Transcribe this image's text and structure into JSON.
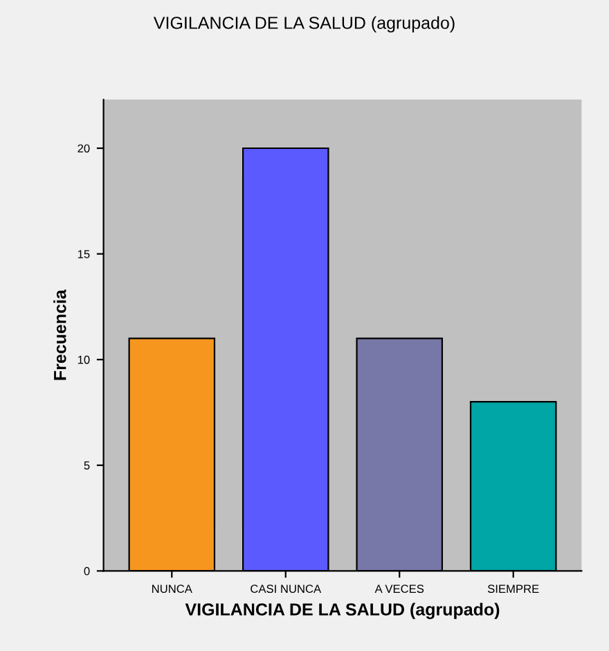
{
  "chart_data": {
    "type": "bar",
    "title": "VIGILANCIA DE LA SALUD (agrupado)",
    "xlabel": "VIGILANCIA DE LA SALUD (agrupado)",
    "ylabel": "Frecuencia",
    "categories": [
      "NUNCA",
      "CASI NUNCA",
      "A VECES",
      "SIEMPRE"
    ],
    "values": [
      11,
      20,
      11,
      8
    ],
    "colors": [
      "#f7961e",
      "#5a5aff",
      "#7878a8",
      "#00a5a5"
    ],
    "ylim": [
      0,
      22.3
    ],
    "yticks": [
      0,
      5,
      10,
      15,
      20
    ],
    "grid": false,
    "legend": false
  }
}
